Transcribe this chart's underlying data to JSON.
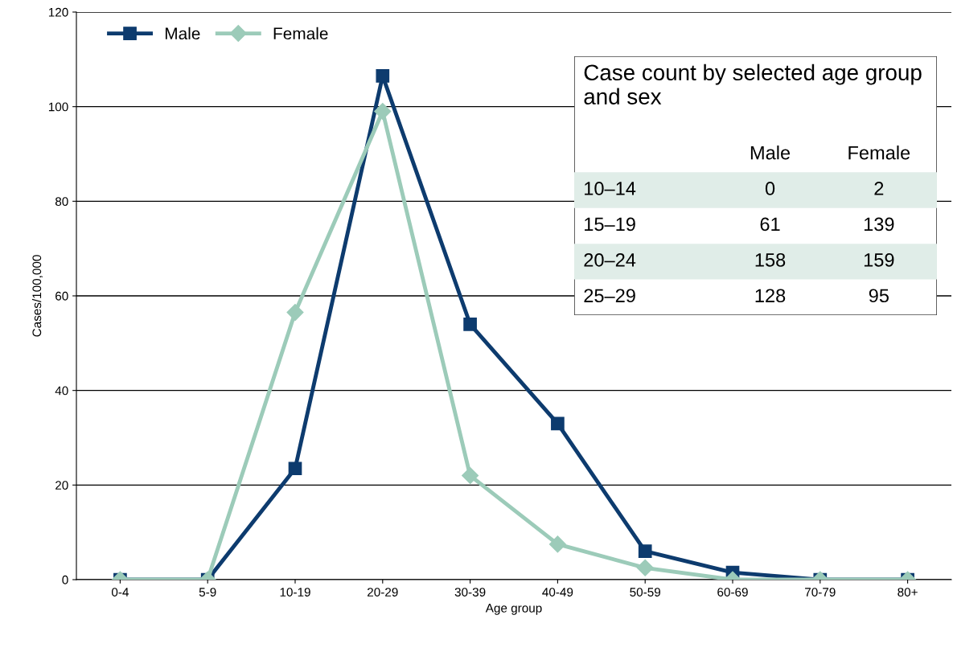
{
  "chart_data": {
    "type": "line",
    "xlabel": "Age group",
    "ylabel": "Cases/100,000",
    "categories": [
      "0-4",
      "5-9",
      "10-19",
      "20-29",
      "30-39",
      "40-49",
      "50-59",
      "60-69",
      "70-79",
      "80+"
    ],
    "series": [
      {
        "name": "Male",
        "color": "#0d3b6e",
        "marker": "square",
        "values": [
          0,
          0,
          23.5,
          106.5,
          54,
          33,
          6,
          1.5,
          0,
          0
        ]
      },
      {
        "name": "Female",
        "color": "#9ccbb9",
        "marker": "diamond",
        "values": [
          0,
          0,
          56.5,
          99,
          22,
          7.5,
          2.5,
          0,
          0,
          0
        ]
      }
    ],
    "ylim": [
      0,
      120
    ],
    "yticks": [
      0,
      20,
      40,
      60,
      80,
      100,
      120
    ],
    "grid": "y",
    "legend": "top left",
    "line_style": "solid",
    "annotations": [
      "Case count by selected age group and sex",
      "Male",
      "Female",
      "10–14",
      "0",
      "2",
      "15–19",
      "61",
      "139",
      "20–24",
      "158",
      "159",
      "25–29",
      "128",
      "95"
    ]
  }
}
